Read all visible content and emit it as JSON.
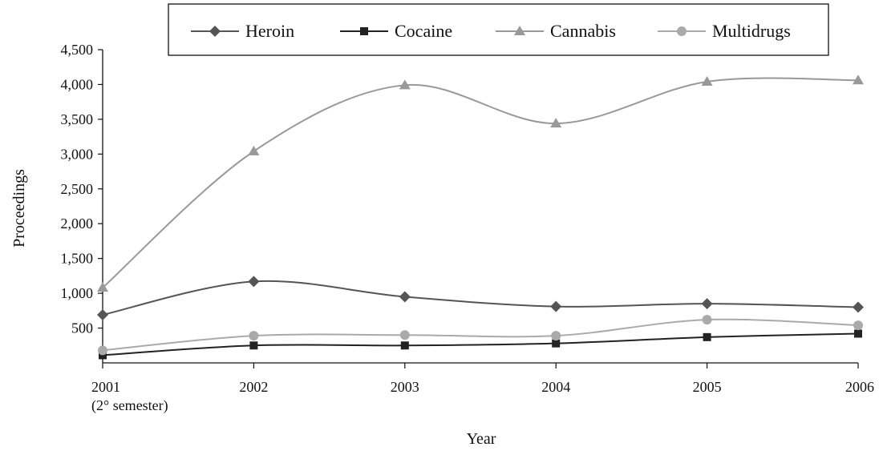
{
  "chart_data": {
    "type": "line",
    "xlabel": "Year",
    "ylabel": "Proceedings",
    "ylim": [
      0,
      4500
    ],
    "yticks": [
      500,
      1000,
      1500,
      2000,
      2500,
      3000,
      3500,
      4000,
      4500
    ],
    "ytick_labels": [
      "500",
      "1,000",
      "1,500",
      "2,000",
      "2,500",
      "3,000",
      "3,500",
      "4,000",
      "4,500"
    ],
    "categories": [
      "2001",
      "2002",
      "2003",
      "2004",
      "2005",
      "2006"
    ],
    "category_sublabels": [
      "(2° semester)",
      "",
      "",
      "",
      "",
      ""
    ],
    "legend_position": "top-center",
    "grid": false,
    "smooth": true,
    "series": [
      {
        "name": "Heroin",
        "marker": "diamond",
        "color": "#555555",
        "values": [
          690,
          1170,
          950,
          810,
          850,
          800
        ]
      },
      {
        "name": "Cocaine",
        "marker": "square",
        "color": "#222222",
        "values": [
          110,
          250,
          250,
          280,
          370,
          420
        ]
      },
      {
        "name": "Cannabis",
        "marker": "triangle",
        "color": "#999999",
        "values": [
          1080,
          3040,
          3990,
          3440,
          4040,
          4060
        ]
      },
      {
        "name": "Multidrugs",
        "marker": "circle",
        "color": "#aaaaaa",
        "values": [
          180,
          390,
          400,
          390,
          620,
          540
        ]
      }
    ]
  }
}
